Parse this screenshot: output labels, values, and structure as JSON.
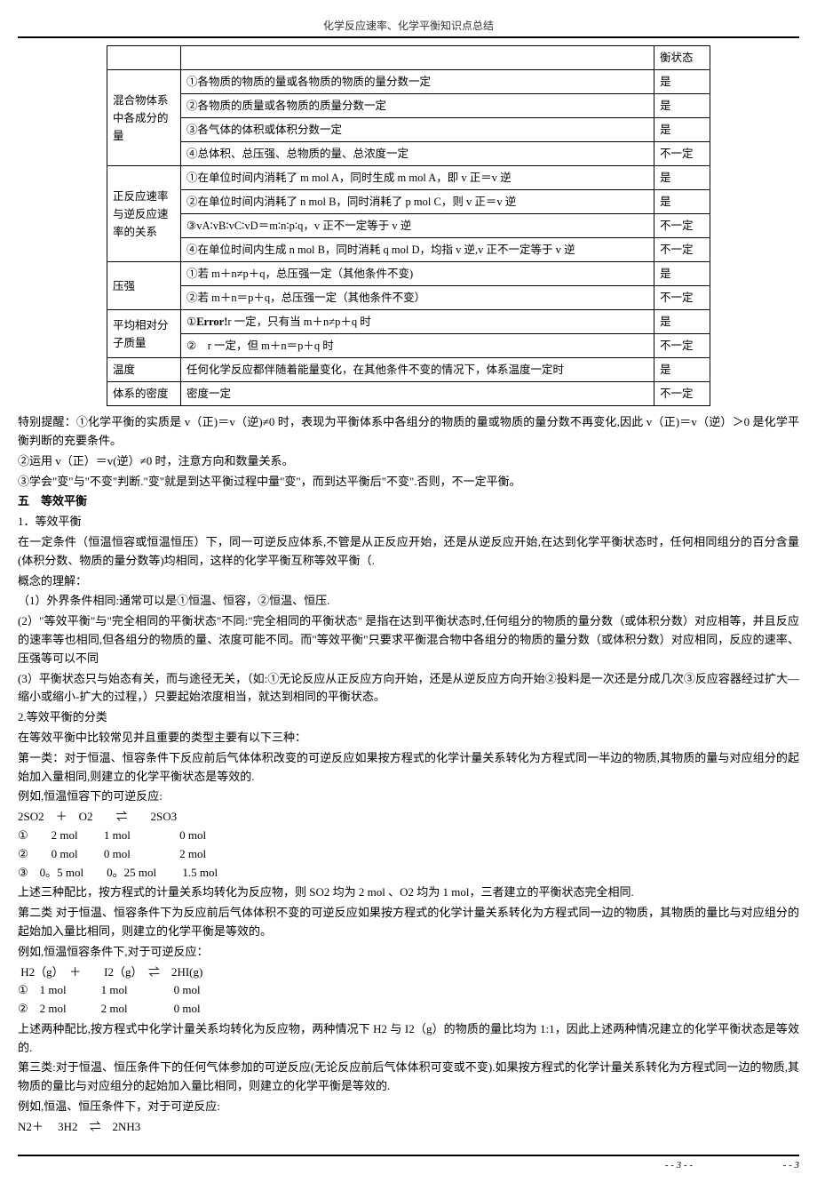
{
  "header": {
    "title": "化学反应速率、化学平衡知识点总结"
  },
  "table": {
    "col3_header_tail": "衡状态",
    "groups": [
      {
        "label": "混合物体系中各成分的量",
        "rows": [
          {
            "text": "①各物质的物质的量或各物质的物质的量分数一定",
            "result": "是"
          },
          {
            "text": "②各物质的质量或各物质的质量分数一定",
            "result": "是"
          },
          {
            "text": "③各气体的体积或体积分数一定",
            "result": "是"
          },
          {
            "text": "④总体积、总压强、总物质的量、总浓度一定",
            "result": "不一定"
          }
        ]
      },
      {
        "label": "正反应速率与逆反应速率的关系",
        "rows": [
          {
            "text": "①在单位时间内消耗了 m mol A，同时生成 m mol A，即 v 正＝v 逆",
            "result": "是"
          },
          {
            "text": "②在单位时间内消耗了 n mol B，同时消耗了 p mol C，则 v 正＝v 逆",
            "result": "是"
          },
          {
            "text": "③vA∶vB∶vC∶vD＝m∶n∶p∶q，v 正不一定等于 v 逆",
            "result": "不一定"
          },
          {
            "text": "④在单位时间内生成 n mol B，同时消耗 q mol D，均指 v 逆,v 正不一定等于 v 逆",
            "result": "不一定"
          }
        ]
      },
      {
        "label": "压强",
        "rows": [
          {
            "text": "①若 m＋n≠p＋q，总压强一定（其他条件不变)",
            "result": "是"
          },
          {
            "text": "②若 m＋n＝p＋q，总压强一定（其他条件不变）",
            "result": "不一定"
          }
        ]
      },
      {
        "label": "平均相对分子质量",
        "rows": [
          {
            "text": "①Error!r 一定，只有当 m＋n≠p＋q 时",
            "result": "是"
          },
          {
            "text": "②　r 一定，但 m＋n＝p＋q 时",
            "result": "不一定"
          }
        ]
      },
      {
        "label": "温度",
        "rows": [
          {
            "text": "任何化学反应都伴随着能量变化，在其他条件不变的情况下，体系温度一定时",
            "result": "是"
          }
        ]
      },
      {
        "label": "体系的密度",
        "rows": [
          {
            "text": "密度一定",
            "result": "不一定"
          }
        ]
      }
    ]
  },
  "paragraphs": {
    "note1": "特别提醒：①化学平衡的实质是 v（正)＝v（逆)≠0 时，表现为平衡体系中各组分的物质的量或物质的量分数不再变化,因此 v（正)＝v（逆）＞0 是化学平衡判断的充要条件。",
    "note2": "②运用 v（正）＝v(逆）≠0 时，注意方向和数量关系。",
    "note3": "③学会\"变\"与\"不变\"判断.\"变\"就是到达平衡过程中量\"变\"，而到达平衡后\"不变\".否则，不一定平衡。",
    "sec5_title": "五　等效平衡",
    "p1_title": "1．等效平衡",
    "p1_body": "在一定条件（恒温恒容或恒温恒压）下，同一可逆反应体系,不管是从正反应开始，还是从逆反应开始,在达到化学平衡状态时，任何相同组分的百分含量(体积分数、物质的量分数等)均相同，这样的化学平衡互称等效平衡（.",
    "concept": "概念的理解：",
    "c1": "（1）外界条件相同:通常可以是①恒温、恒容，②恒温、恒压.",
    "c2": "(2）\"等效平衡\"与\"完全相同的平衡状态\"不同:\"完全相同的平衡状态\" 是指在达到平衡状态时,任何组分的物质的量分数（或体积分数）对应相等，并且反应的速率等也相同,但各组分的物质的量、浓度可能不同。而\"等效平衡\"只要求平衡混合物中各组分的物质的量分数（或体积分数）对应相同，反应的速率、压强等可以不同",
    "c3": "(3）平衡状态只与始态有关，而与途径无关，（如:①无论反应从正反应方向开始，还是从逆反应方向开始②投料是一次还是分成几次③反应容器经过扩大—缩小或缩小-扩大的过程，）只要起始浓度相当，就达到相同的平衡状态。",
    "p2_title": "2.等效平衡的分类",
    "p2_body": "在等效平衡中比较常见并且重要的类型主要有以下三种：",
    "type1": "第一类：对于恒温、恒容条件下反应前后气体体积改变的可逆反应如果按方程式的化学计量关系转化为方程式同一半边的物质,其物质的量与对应组分的起始加入量相同,则建立的化学平衡状态是等效的.",
    "ex1_intro": "例如,恒温恒容下的可逆反应:",
    "eq1": "2SO2　＋　O2　　⇌　　2SO3",
    "eq1_r1": "①　　2 mol　　 1 mol　　　　 0 mol",
    "eq1_r2": "②　　0 mol　　 0 mol　　　　 2 mol",
    "eq1_r3": "③　0。5 mol　　0。25 mol　　 1.5 mol",
    "eq1_post": "上述三种配比，按方程式的计量关系均转化为反应物，则 SO2 均为 2 mol 、O2 均为 1 mol，三者建立的平衡状态完全相同.",
    "type2": "第二类 对于恒温、恒容条件下为反应前后气体体积不变的可逆反应如果按方程式的化学计量关系转化为方程式同一边的物质，其物质的量比与对应组分的起始加入量比相同，则建立的化学平衡是等效的。",
    "ex2_intro": "例如,恒温恒容条件下,对于可逆反应：",
    "eq2": " H2（g）　＋　　I2（g）　⇌　2HI(g)",
    "eq2_r1": "①　1 mol　　　1 mol　　　　0 mol",
    "eq2_r2": "②　2 mol　　　2 mol　　　　0 mol",
    "eq2_post": "上述两种配比,按方程式中化学计量关系均转化为反应物，两种情况下 H2 与 I2（g）的物质的量比均为 1:1，因此上述两种情况建立的化学平衡状态是等效的.",
    "type3": "第三类:对于恒温、恒压条件下的任何气体参加的可逆反应(无论反应前后气体体积可变或不变).如果按方程式的化学计量关系转化为方程式同一边的物质,其物质的量比与对应组分的起始加入量比相同，则建立的化学平衡是等效的.",
    "ex3_intro": "例如,恒温、恒压条件下，对于可逆反应:",
    "eq3": "N2＋　 3H2　⇌　2NH3"
  },
  "footer": {
    "page_left": "- - 3 - -",
    "page_right": "- - 3"
  }
}
